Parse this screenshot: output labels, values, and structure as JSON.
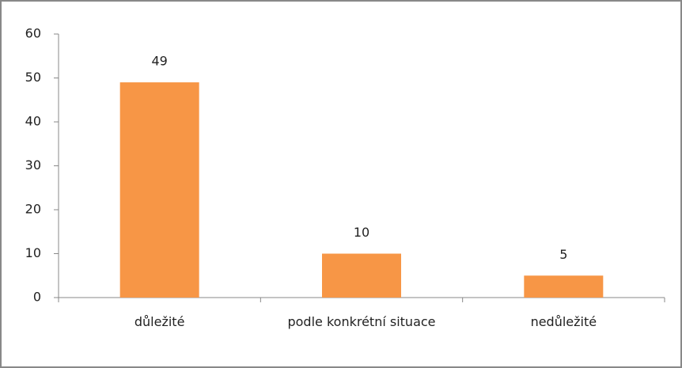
{
  "chart_data": {
    "type": "bar",
    "categories": [
      "důležité",
      "podle konkrétní situace",
      "nedůležité"
    ],
    "values": [
      49,
      10,
      5
    ],
    "color": "#f79646",
    "ylim": [
      0,
      60
    ],
    "yticks": [
      0,
      10,
      20,
      30,
      40,
      50,
      60
    ],
    "grid": false
  }
}
